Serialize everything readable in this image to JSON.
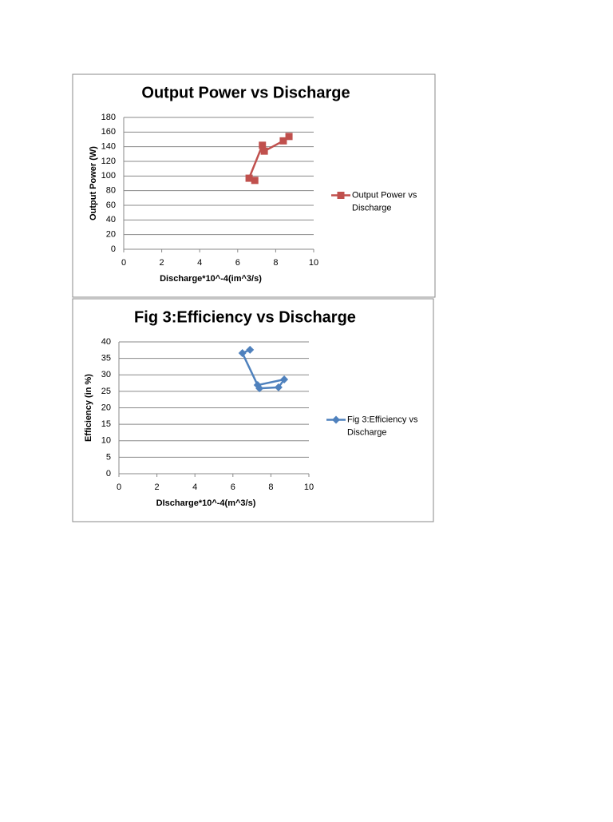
{
  "chart_data": [
    {
      "type": "line",
      "title": "Output Power vs Discharge",
      "x_label": "Discharge*10^-4(im^3/s)",
      "y_label": "Output Power (W)",
      "marker": "square",
      "legend": "right",
      "grid": true,
      "series": [
        {
          "name": "Output Power vs Discharge",
          "color": "#c0504d",
          "x": [
            6.9,
            6.6,
            7.3,
            7.4,
            8.4,
            8.7
          ],
          "values": [
            94,
            97,
            142,
            134,
            148,
            154
          ]
        }
      ],
      "xlim": [
        0,
        10
      ],
      "xticks": [
        0,
        2,
        4,
        6,
        8,
        10
      ],
      "ylim": [
        0,
        180
      ],
      "yticks": [
        0,
        20,
        40,
        60,
        80,
        100,
        120,
        140,
        160,
        180
      ]
    },
    {
      "type": "line",
      "title": "Fig 3:Efficiency vs Discharge",
      "x_label": "DIscharge*10^-4(m^3/s)",
      "y_label": "Efficiency (in %)",
      "marker": "diamond",
      "legend": "right",
      "grid": true,
      "series": [
        {
          "name": "Fig 3:Efficiency vs Discharge",
          "color": "#4f81bd",
          "x": [
            6.9,
            6.5,
            7.3,
            8.7,
            8.4,
            7.4
          ],
          "values": [
            37.6,
            36.6,
            26.9,
            28.6,
            26.2,
            25.9
          ]
        }
      ],
      "xlim": [
        0,
        10
      ],
      "xticks": [
        0,
        2,
        4,
        6,
        8,
        10
      ],
      "ylim": [
        0,
        40
      ],
      "yticks": [
        0,
        5,
        10,
        15,
        20,
        25,
        30,
        35,
        40
      ]
    }
  ]
}
